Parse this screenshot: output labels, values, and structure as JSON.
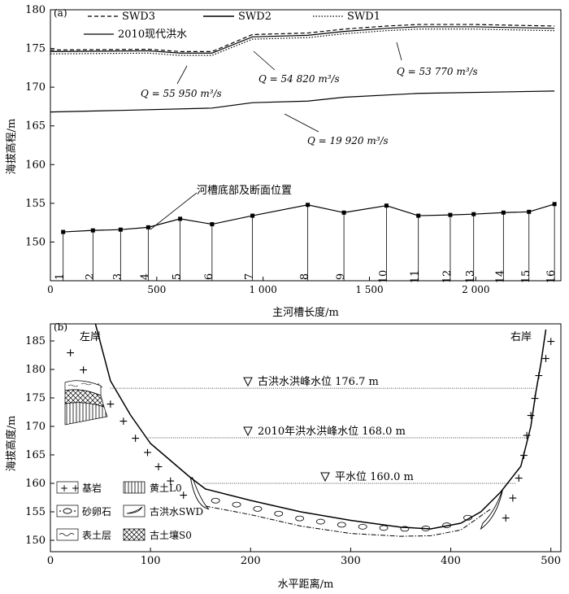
{
  "chart_data": [
    {
      "type": "line",
      "panel_label": "(a)",
      "xlabel": "主河槽长度/m",
      "ylabel": "海拔高程/m",
      "xlim": [
        0,
        2400
      ],
      "ylim": [
        145,
        180
      ],
      "xticks": [
        0,
        500,
        1000,
        1500,
        2000
      ],
      "xtick_labels": [
        "0",
        "500",
        "1 000",
        "1 500",
        "2 000"
      ],
      "yticks": [
        150,
        155,
        160,
        165,
        170,
        175,
        180
      ],
      "legend": [
        {
          "name": "SWD3",
          "style": "dashed"
        },
        {
          "name": "SWD2",
          "style": "solid"
        },
        {
          "name": "SWD1",
          "style": "dotted"
        },
        {
          "name": "2010现代洪水",
          "style": "solid"
        }
      ],
      "series": [
        {
          "name": "SWD3",
          "style": "dashed",
          "x": [
            0,
            460,
            610,
            760,
            950,
            1210,
            1380,
            1580,
            1730,
            1990,
            2370
          ],
          "y": [
            174.8,
            174.9,
            174.6,
            174.6,
            176.8,
            177.0,
            177.5,
            177.9,
            178.1,
            178.1,
            177.9
          ]
        },
        {
          "name": "SWD2",
          "style": "solid",
          "x": [
            0,
            460,
            610,
            760,
            950,
            1210,
            1380,
            1580,
            1730,
            1990,
            2370
          ],
          "y": [
            174.6,
            174.7,
            174.4,
            174.4,
            176.5,
            176.7,
            177.2,
            177.6,
            177.8,
            177.8,
            177.6
          ]
        },
        {
          "name": "SWD1",
          "style": "dotted",
          "x": [
            0,
            460,
            610,
            760,
            950,
            1210,
            1380,
            1580,
            1730,
            1990,
            2370
          ],
          "y": [
            174.3,
            174.4,
            174.1,
            174.1,
            176.2,
            176.4,
            176.9,
            177.3,
            177.5,
            177.5,
            177.3
          ]
        },
        {
          "name": "2010现代洪水",
          "style": "solid",
          "x": [
            0,
            330,
            760,
            950,
            1210,
            1380,
            1730,
            2370
          ],
          "y": [
            166.8,
            167.0,
            167.3,
            168.0,
            168.2,
            168.7,
            169.2,
            169.5
          ]
        }
      ],
      "channel_bottom": {
        "label": "河槽底部及断面位置",
        "sections": [
          "1",
          "2",
          "3",
          "4",
          "5",
          "6",
          "7",
          "8",
          "9",
          "10",
          "11",
          "12",
          "13",
          "14",
          "15",
          "16"
        ],
        "x": [
          60,
          200,
          330,
          460,
          610,
          760,
          950,
          1210,
          1380,
          1580,
          1730,
          1880,
          1990,
          2130,
          2250,
          2370
        ],
        "y": [
          151.3,
          151.5,
          151.6,
          151.9,
          153.0,
          152.3,
          153.4,
          154.8,
          153.8,
          154.7,
          153.4,
          153.5,
          153.6,
          153.8,
          153.9,
          154.9
        ]
      },
      "annotations": [
        {
          "text": "Q = 55 950 m³/s"
        },
        {
          "text": "Q = 54 820 m³/s"
        },
        {
          "text": "Q = 53 770 m³/s"
        },
        {
          "text": "Q = 19 920 m³/s"
        }
      ]
    },
    {
      "type": "line",
      "panel_label": "(b)",
      "xlabel": "水平距离/m",
      "ylabel": "海拔高度/m",
      "xlim": [
        0,
        510
      ],
      "ylim": [
        148,
        188
      ],
      "xticks": [
        0,
        100,
        200,
        300,
        400,
        500
      ],
      "yticks": [
        150,
        155,
        160,
        165,
        170,
        175,
        180,
        185
      ],
      "bank_labels": {
        "left": "左岸",
        "right": "右岸"
      },
      "cross_section": {
        "x": [
          45,
          60,
          80,
          100,
          120,
          140,
          155,
          200,
          250,
          300,
          350,
          380,
          410,
          430,
          450,
          470,
          480,
          485,
          490,
          495
        ],
        "y": [
          188,
          178,
          172,
          167,
          164,
          161,
          159,
          157,
          155,
          153.5,
          152.3,
          152,
          153,
          155,
          158.5,
          163,
          170,
          176,
          181,
          187
        ]
      },
      "water_levels": [
        {
          "label": "古洪水洪峰水位  176.7 m",
          "level": 176.7,
          "x_from": 60,
          "x_to": 484
        },
        {
          "label": "2010年洪水洪峰水位  168.0 m",
          "level": 168.0,
          "x_from": 98,
          "x_to": 478
        },
        {
          "label": "平水位  160.0 m",
          "level": 160.0,
          "x_from": 153,
          "x_to": 465
        }
      ],
      "gravel_layer": {
        "x": [
          155,
          200,
          250,
          300,
          350,
          380,
          410,
          440
        ],
        "y": [
          156,
          154.5,
          152.5,
          151.2,
          150.7,
          150.8,
          151.8,
          155.5
        ]
      },
      "legend": [
        {
          "symbol": "bedrock",
          "label": "基岩"
        },
        {
          "symbol": "loess",
          "label": "黄土L0"
        },
        {
          "symbol": "gravel",
          "label": "砂卵石"
        },
        {
          "symbol": "paleoflood",
          "label": "古洪水SWD"
        },
        {
          "symbol": "topsoil",
          "label": "表土层"
        },
        {
          "symbol": "paleosol",
          "label": "古土壤S0"
        }
      ]
    }
  ]
}
